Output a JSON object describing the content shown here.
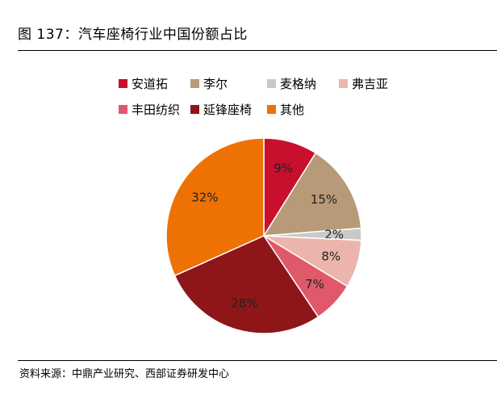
{
  "figure": {
    "title": "图 137：汽车座椅行业中国份额占比",
    "source": "资料来源：中鼎产业研究、西部证券研发中心"
  },
  "chart_data": {
    "type": "pie",
    "title": "",
    "start_angle_deg": 90,
    "direction": "clockwise",
    "legend_position": "top",
    "slices": [
      {
        "name": "安道拓",
        "value": 9,
        "label": "9%",
        "color": "#C8102E"
      },
      {
        "name": "李尔",
        "value": 15,
        "label": "15%",
        "color": "#B89A78"
      },
      {
        "name": "麦格纳",
        "value": 2,
        "label": "2%",
        "color": "#C9C9C9"
      },
      {
        "name": "弗吉亚",
        "value": 8,
        "label": "8%",
        "color": "#EBB5AE"
      },
      {
        "name": "丰田纺织",
        "value": 7,
        "label": "7%",
        "color": "#E0596A"
      },
      {
        "name": "延锋座椅",
        "value": 28,
        "label": "28%",
        "color": "#8E1619"
      },
      {
        "name": "其他",
        "value": 32,
        "label": "32%",
        "color": "#EE7203"
      }
    ]
  }
}
